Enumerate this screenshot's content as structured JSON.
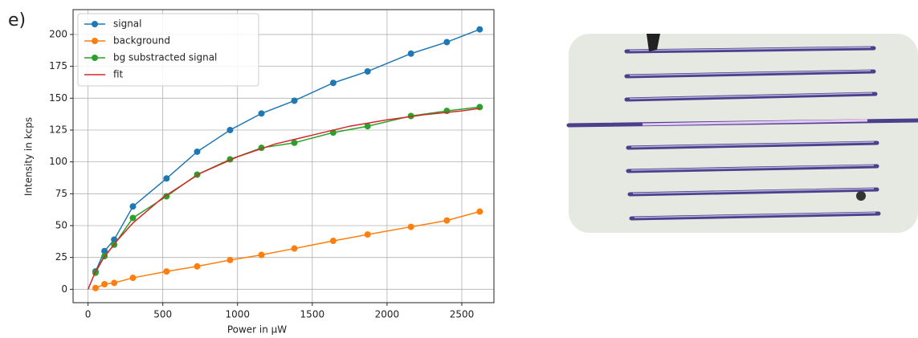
{
  "chart_data": {
    "type": "line",
    "panel_label": "e)",
    "x_label": "Power in μW",
    "y_label": "Intensity in kcps",
    "xlim": [
      -100,
      2715
    ],
    "ylim": [
      -10.5,
      219.5
    ],
    "xticks": [
      0,
      500,
      1000,
      1500,
      2000,
      2500
    ],
    "yticks": [
      0,
      25,
      50,
      75,
      100,
      125,
      150,
      175,
      200
    ],
    "grid": true,
    "legend": "upper left",
    "series": [
      {
        "name": "signal",
        "color": "#1f77b4",
        "markers": true,
        "x": [
          50,
          110,
          175,
          300,
          525,
          730,
          950,
          1160,
          1380,
          1640,
          1870,
          2160,
          2400,
          2620
        ],
        "values": [
          14,
          30,
          39,
          65,
          87,
          108,
          125,
          138,
          148,
          162,
          171,
          185,
          194,
          204
        ]
      },
      {
        "name": "background",
        "color": "#ff7f0e",
        "markers": true,
        "x": [
          50,
          110,
          175,
          300,
          525,
          730,
          950,
          1160,
          1380,
          1640,
          1870,
          2160,
          2400,
          2620
        ],
        "values": [
          1,
          4,
          5,
          9,
          14,
          18,
          23,
          27,
          32,
          38,
          43,
          49,
          54,
          61
        ]
      },
      {
        "name": "bg substracted signal",
        "color": "#2ca02c",
        "markers": true,
        "x": [
          50,
          110,
          175,
          300,
          525,
          730,
          950,
          1160,
          1380,
          1640,
          1870,
          2160,
          2400,
          2620
        ],
        "values": [
          13,
          26,
          35,
          56,
          73,
          90,
          102,
          111,
          115,
          123,
          128,
          136,
          140,
          143
        ]
      },
      {
        "name": "fit",
        "color": "#d62728",
        "markers": false,
        "x": [
          0,
          50,
          100,
          200,
          300,
          500,
          750,
          1000,
          1250,
          1500,
          1750,
          2000,
          2250,
          2500,
          2620
        ],
        "values": [
          0,
          14,
          24,
          39,
          52,
          72,
          91,
          104,
          114,
          121,
          128,
          133,
          137,
          140,
          142
        ]
      }
    ]
  }
}
